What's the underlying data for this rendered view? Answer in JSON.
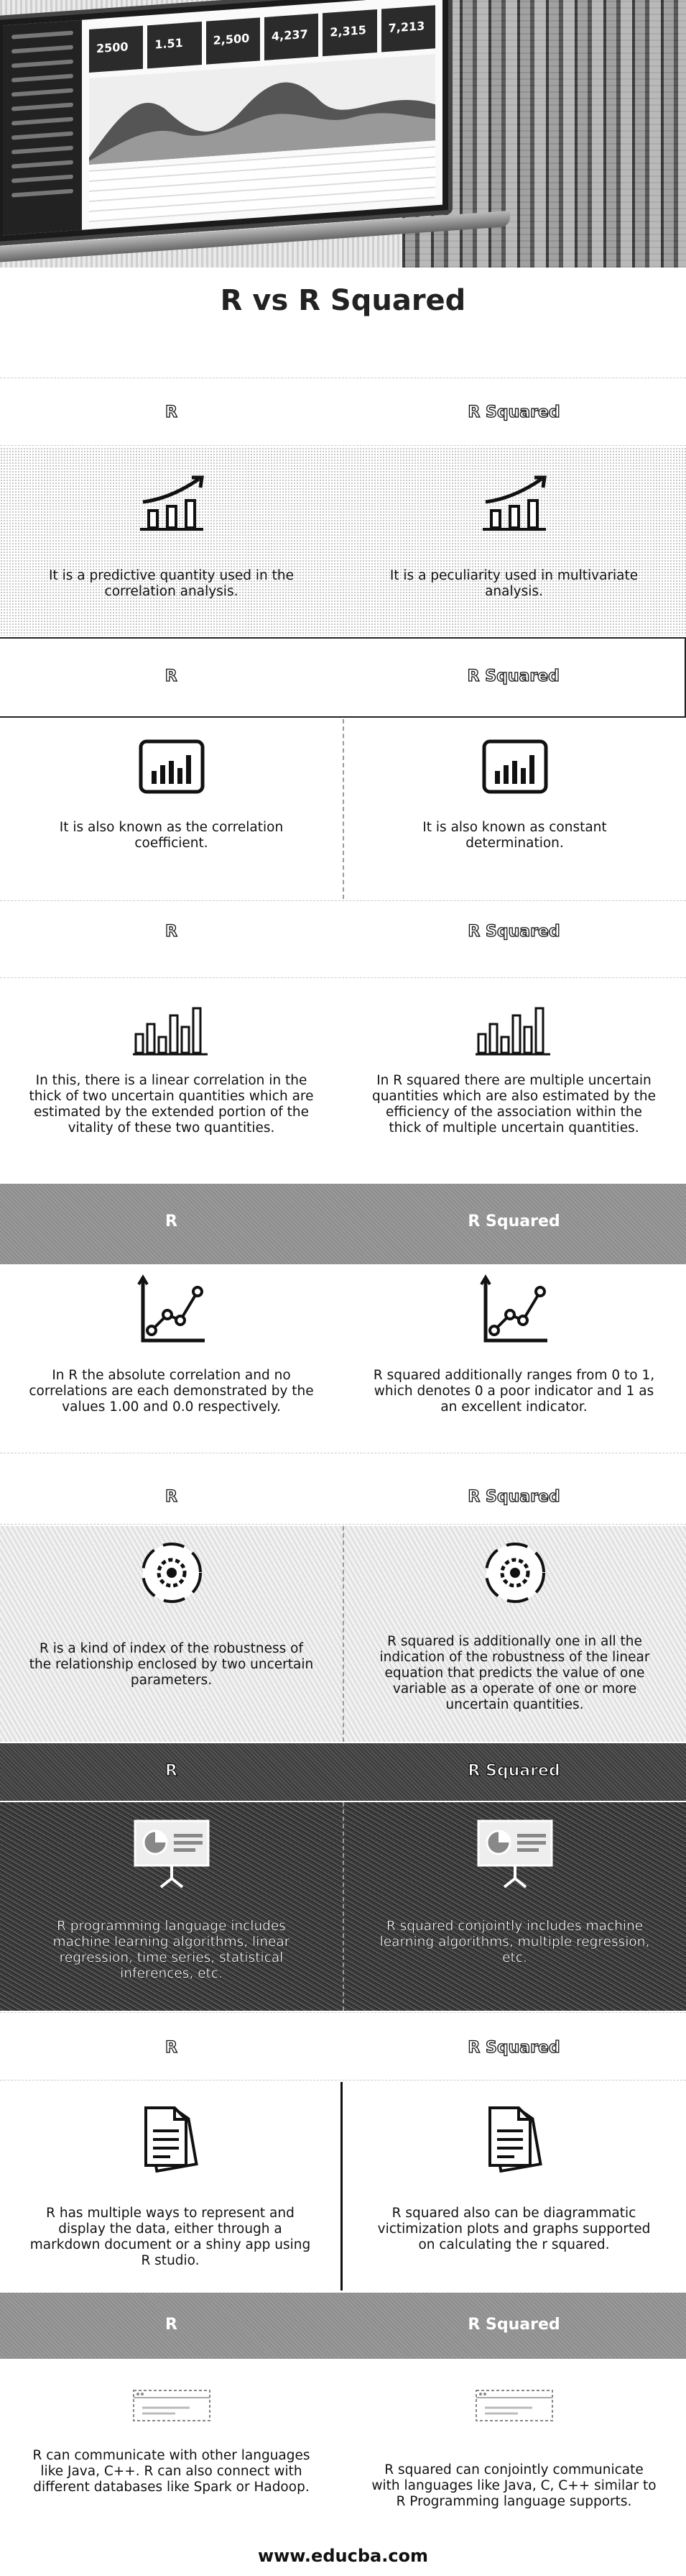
{
  "hero": {
    "dashboard_stats": [
      "2500",
      "1.51",
      "2,500",
      "4,237",
      "2,315",
      "7,213"
    ]
  },
  "title": "R vs R Squared",
  "header": {
    "left": "R",
    "right": "R Squared"
  },
  "rows": [
    {
      "icon": "growth-chart-icon",
      "left": "It is a predictive quantity used in the correlation analysis.",
      "right": "It is a peculiarity used in multivariate analysis."
    },
    {
      "icon": "monitor-bar-chart-icon",
      "left": "It is also known as the correlation coefficient.",
      "right": "It is also known as constant determination."
    },
    {
      "icon": "bar-chart-icon",
      "left": "In this, there is a linear correlation in the thick of two uncertain quantities which are estimated by the extended portion of the vitality of these two quantities.",
      "right": "In R squared there are multiple uncertain quantities which are also estimated by the efficiency of the association within the thick of multiple uncertain quantities."
    },
    {
      "icon": "line-graph-icon",
      "left": "In R the absolute correlation and no correlations are each demonstrated by the values 1.00 and 0.0 respectively.",
      "right": "R squared additionally ranges from 0 to 1, which denotes 0 a poor indicator and 1 as an excellent indicator."
    },
    {
      "icon": "gear-icon",
      "left": "R is a kind of index of the robustness of the relationship enclosed by two uncertain parameters.",
      "right": "R squared is additionally one in all the indication of the robustness of the linear equation that predicts the value of one variable as a operate of one or more uncertain quantities."
    },
    {
      "icon": "presentation-board-icon",
      "left": "R programming language includes machine learning algorithms, linear regression, time series, statistical inferences, etc.",
      "right": "R squared conjointly includes machine learning algorithms, multiple regression, etc."
    },
    {
      "icon": "document-icon",
      "left": "R has multiple ways to represent and display the data, either through a markdown document or a shiny app using R studio.",
      "right": "R squared also can be diagrammatic victimization plots and graphs supported on calculating the r squared."
    },
    {
      "icon": "browser-window-icon",
      "left": "R can communicate with other languages like Java, C++. R can also connect with different databases like Spark or Hadoop.",
      "right": "R squared can conjointly communicate with languages like Java, C, C++ similar to R Programming language supports."
    }
  ],
  "footer": "www.educba.com"
}
